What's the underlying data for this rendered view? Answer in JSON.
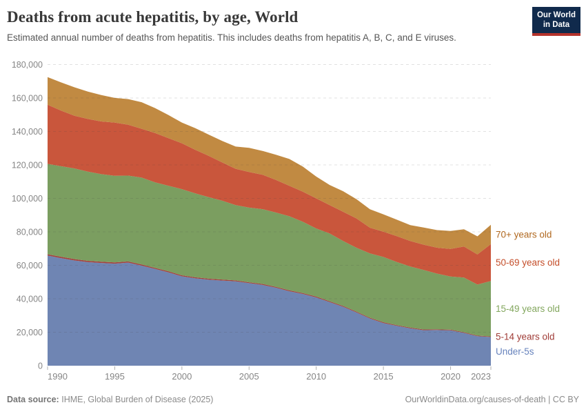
{
  "header": {
    "title": "Deaths from acute hepatitis, by age, World",
    "subtitle": "Estimated annual number of deaths from hepatitis. This includes deaths from hepatitis A, B, C, and E viruses.",
    "logo": {
      "line1": "Our World",
      "line2": "in Data"
    }
  },
  "footer": {
    "source_label": "Data source:",
    "source_value": "IHME, Global Burden of Disease (2025)",
    "credit": "OurWorldinData.org/causes-of-death | CC BY"
  },
  "chart_data": {
    "type": "area",
    "stacked": true,
    "title": "Deaths from acute hepatitis, by age, World",
    "xlabel": "",
    "ylabel": "",
    "xlim": [
      1990,
      2023
    ],
    "ylim": [
      0,
      180000
    ],
    "yticks": [
      0,
      20000,
      40000,
      60000,
      80000,
      100000,
      120000,
      140000,
      160000,
      180000
    ],
    "xticks": [
      1990,
      1995,
      2000,
      2005,
      2010,
      2015,
      2020,
      2023
    ],
    "grid": "horizontal-dashed",
    "legend_position": "right-of-plot",
    "x": [
      1990,
      1991,
      1992,
      1993,
      1994,
      1995,
      1996,
      1997,
      1998,
      1999,
      2000,
      2001,
      2002,
      2003,
      2004,
      2005,
      2006,
      2007,
      2008,
      2009,
      2010,
      2011,
      2012,
      2013,
      2014,
      2015,
      2016,
      2017,
      2018,
      2019,
      2020,
      2021,
      2022,
      2023
    ],
    "series": [
      {
        "name": "under-5s",
        "label": "Under-5s",
        "color": "#6f85b3",
        "label_color": "#6783bd",
        "values": [
          65800,
          64300,
          62900,
          61900,
          61400,
          61000,
          61600,
          59800,
          57800,
          55800,
          53400,
          52200,
          51400,
          50900,
          50400,
          49300,
          48300,
          46600,
          44500,
          42900,
          40800,
          38000,
          35200,
          31800,
          28200,
          25500,
          23800,
          22300,
          21200,
          21300,
          21100,
          19600,
          17600,
          17100
        ]
      },
      {
        "name": "5-14-years-old",
        "label": "5-14 years old",
        "color": "#a2443f",
        "label_color": "#a03c37",
        "values": [
          800,
          800,
          800,
          780,
          760,
          740,
          720,
          700,
          680,
          660,
          640,
          620,
          600,
          590,
          580,
          570,
          560,
          550,
          540,
          530,
          520,
          510,
          500,
          490,
          480,
          470,
          460,
          450,
          440,
          430,
          420,
          410,
          400,
          400
        ]
      },
      {
        "name": "15-49-years-old",
        "label": "15-49 years old",
        "color": "#7b9e60",
        "label_color": "#83a75e",
        "values": [
          54000,
          54100,
          54200,
          53300,
          52300,
          51800,
          51300,
          51900,
          51100,
          51100,
          51500,
          50200,
          48700,
          47100,
          45000,
          44600,
          44700,
          44400,
          44300,
          42600,
          40700,
          40500,
          38800,
          38200,
          38400,
          39000,
          37700,
          36500,
          35600,
          33300,
          31800,
          32700,
          30500,
          33100
        ]
      },
      {
        "name": "50-69-years-old",
        "label": "50-69 years old",
        "color": "#c9563c",
        "label_color": "#c44e2a",
        "values": [
          35400,
          33300,
          31500,
          31500,
          31500,
          31800,
          30400,
          29200,
          29500,
          28400,
          27400,
          26000,
          24700,
          22900,
          21700,
          21300,
          20600,
          19500,
          18200,
          18000,
          18000,
          17000,
          17500,
          17500,
          15400,
          15100,
          15500,
          15300,
          15100,
          15500,
          16500,
          18500,
          18000,
          22100
        ]
      },
      {
        "name": "70-plus-years-old",
        "label": "70+ years old",
        "color": "#c18a42",
        "label_color": "#b0681f",
        "values": [
          16500,
          16800,
          17000,
          16300,
          15800,
          14700,
          15300,
          15900,
          14900,
          13800,
          12400,
          12900,
          12700,
          12800,
          13300,
          14400,
          14200,
          15000,
          16000,
          15000,
          13000,
          12000,
          12300,
          11500,
          11000,
          10400,
          9800,
          9500,
          10200,
          10500,
          10700,
          10300,
          10800,
          11500
        ]
      }
    ]
  }
}
